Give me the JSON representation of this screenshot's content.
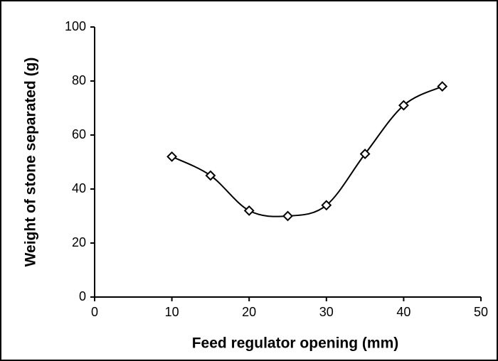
{
  "chart_data": {
    "type": "line",
    "x_label": "Feed regulator opening (mm)",
    "y_label": "Weight of stone separated (g)",
    "x": [
      10,
      15,
      20,
      25,
      30,
      35,
      40,
      45
    ],
    "series": [
      {
        "color": "#000000",
        "values": [
          52,
          45,
          32,
          30,
          34,
          53,
          71,
          78
        ]
      }
    ],
    "xlim": [
      0,
      50
    ],
    "xticks": [
      0,
      10,
      20,
      30,
      40,
      50
    ],
    "ylim": [
      0,
      100
    ],
    "yticks": [
      0,
      20,
      40,
      60,
      80,
      100
    ],
    "grid": false
  }
}
